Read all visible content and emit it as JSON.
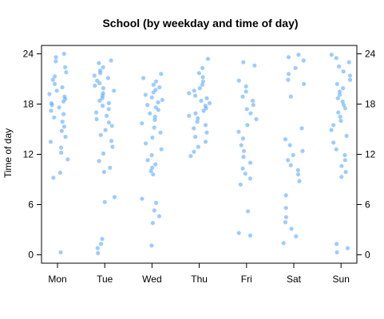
{
  "chart_data": {
    "type": "scatter",
    "title": "School (by weekday and time of day)",
    "xlabel": "",
    "ylabel": "Time of day",
    "categories": [
      "Mon",
      "Tue",
      "Wed",
      "Thu",
      "Fri",
      "Sat",
      "Sun"
    ],
    "yticks": [
      0,
      6,
      12,
      18,
      24
    ],
    "ylim": [
      -1,
      25
    ],
    "grid": false,
    "jitter": true,
    "point_color": "#4da3ff",
    "series": [
      {
        "category": "Mon",
        "values": [
          0.3,
          9.2,
          9.8,
          11.4,
          12.2,
          12.8,
          13.5,
          14.1,
          14.8,
          15.3,
          15.9,
          16.4,
          16.8,
          17.2,
          17.6,
          17.9,
          18.1,
          18.3,
          18.6,
          18.9,
          19.2,
          19.6,
          20.0,
          20.4,
          20.9,
          21.3,
          21.8,
          22.4,
          23.1,
          23.6,
          24.0
        ]
      },
      {
        "category": "Tue",
        "values": [
          0.2,
          0.8,
          1.3,
          1.9,
          6.3,
          6.9,
          9.9,
          10.4,
          11.2,
          12.1,
          12.9,
          13.6,
          14.3,
          14.9,
          15.4,
          15.8,
          16.2,
          16.6,
          17.0,
          17.4,
          17.8,
          18.1,
          18.4,
          18.7,
          19.0,
          19.3,
          19.6,
          19.9,
          20.2,
          20.5,
          20.8,
          21.1,
          21.4,
          21.7,
          22.0,
          22.4,
          22.9,
          23.2
        ]
      },
      {
        "category": "Wed",
        "values": [
          1.1,
          3.8,
          4.6,
          5.3,
          6.2,
          6.7,
          9.6,
          10.0,
          10.4,
          10.8,
          11.3,
          11.9,
          12.6,
          13.3,
          14.0,
          14.6,
          15.2,
          15.7,
          16.1,
          16.5,
          16.9,
          17.3,
          17.6,
          17.9,
          18.2,
          18.5,
          18.8,
          19.1,
          19.4,
          19.7,
          20.0,
          20.3,
          20.7,
          21.1,
          21.6
        ]
      },
      {
        "category": "Thu",
        "values": [
          11.8,
          12.3,
          12.9,
          13.5,
          14.1,
          14.6,
          15.1,
          15.5,
          15.9,
          16.3,
          16.6,
          16.9,
          17.2,
          17.5,
          17.8,
          18.1,
          18.4,
          18.7,
          19.0,
          19.3,
          19.6,
          19.9,
          20.3,
          20.7,
          21.2,
          21.7,
          22.3,
          23.4
        ]
      },
      {
        "category": "Fri",
        "values": [
          2.3,
          2.6,
          5.2,
          8.4,
          9.1,
          9.7,
          10.3,
          11.0,
          11.7,
          12.4,
          13.1,
          13.9,
          14.7,
          15.5,
          16.2,
          16.9,
          17.4,
          17.9,
          18.4,
          18.9,
          19.5,
          20.1,
          20.8,
          22.6,
          23.0
        ]
      },
      {
        "category": "Sat",
        "values": [
          1.4,
          2.2,
          3.1,
          3.9,
          4.5,
          5.6,
          7.1,
          8.8,
          9.6,
          10.1,
          10.7,
          11.3,
          11.9,
          12.4,
          13.1,
          13.8,
          15.1,
          18.9,
          20.4,
          20.9,
          21.6,
          22.3,
          23.2,
          23.6,
          23.9
        ]
      },
      {
        "category": "Sun",
        "values": [
          0.3,
          0.8,
          1.3,
          9.3,
          9.9,
          10.6,
          11.3,
          11.9,
          12.6,
          13.4,
          14.2,
          14.9,
          15.5,
          16.0,
          16.5,
          17.0,
          17.5,
          17.9,
          18.3,
          18.7,
          19.1,
          19.5,
          19.9,
          20.4,
          20.9,
          21.4,
          21.9,
          22.5,
          23.0,
          23.5,
          23.9
        ]
      }
    ]
  }
}
